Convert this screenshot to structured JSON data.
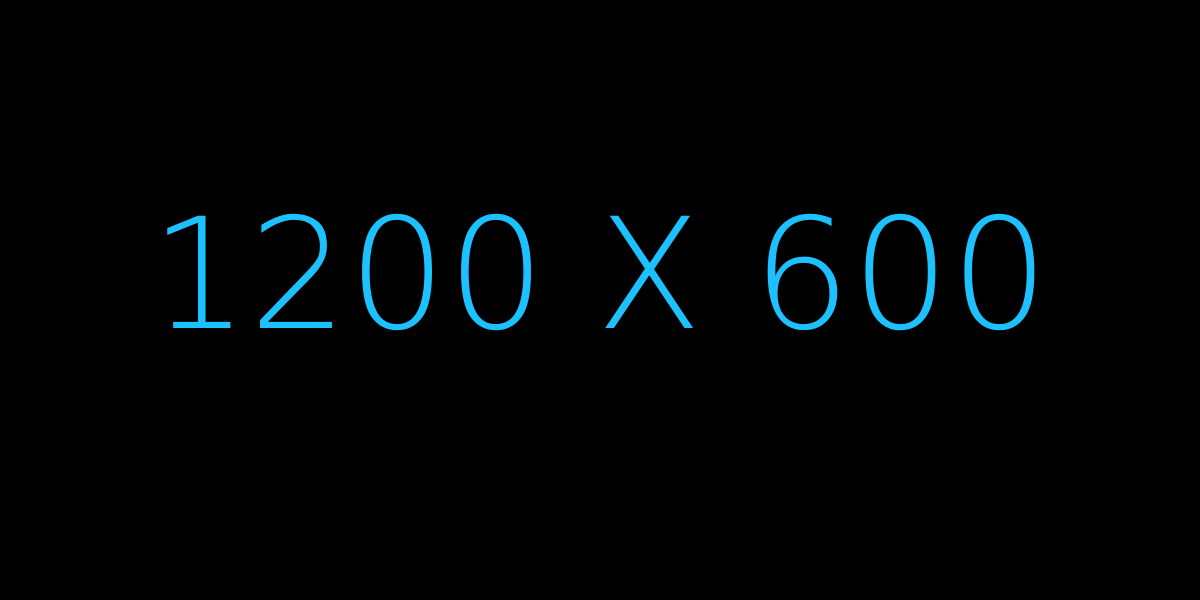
{
  "placeholder": {
    "text": "1200 X 600",
    "background_color": "#000000",
    "text_color": "#1ec1ff"
  }
}
